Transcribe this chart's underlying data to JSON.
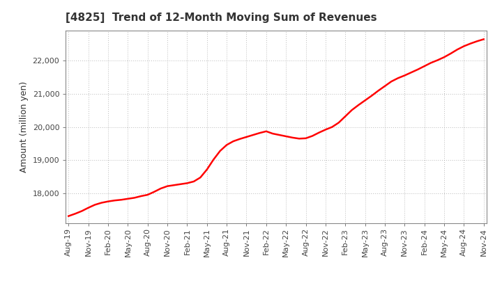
{
  "title": "[4825]  Trend of 12-Month Moving Sum of Revenues",
  "ylabel": "Amount (million yen)",
  "line_color": "#FF0000",
  "line_width": 1.8,
  "background_color": "#FFFFFF",
  "plot_bg_color": "#FFFFFF",
  "grid_color": "#999999",
  "ylim": [
    17100,
    22900
  ],
  "yticks": [
    18000,
    19000,
    20000,
    21000,
    22000
  ],
  "values": [
    17320,
    17390,
    17470,
    17570,
    17660,
    17720,
    17760,
    17790,
    17810,
    17840,
    17870,
    17920,
    17960,
    18050,
    18150,
    18220,
    18250,
    18280,
    18310,
    18360,
    18480,
    18720,
    19020,
    19280,
    19460,
    19570,
    19640,
    19700,
    19760,
    19820,
    19870,
    19800,
    19760,
    19720,
    19680,
    19650,
    19660,
    19730,
    19830,
    19920,
    20000,
    20130,
    20320,
    20510,
    20660,
    20800,
    20940,
    21090,
    21230,
    21370,
    21470,
    21550,
    21640,
    21730,
    21830,
    21930,
    22010,
    22100,
    22210,
    22330,
    22430,
    22510,
    22580,
    22640
  ],
  "xtick_labels": [
    "Aug-19",
    "Nov-19",
    "Feb-20",
    "May-20",
    "Aug-20",
    "Nov-20",
    "Feb-21",
    "May-21",
    "Aug-21",
    "Nov-21",
    "Feb-22",
    "May-22",
    "Aug-22",
    "Nov-22",
    "Feb-23",
    "May-23",
    "Aug-23",
    "Nov-23",
    "Feb-24",
    "May-24",
    "Aug-24",
    "Nov-24"
  ],
  "xtick_positions": [
    0,
    3,
    6,
    9,
    12,
    15,
    18,
    21,
    24,
    27,
    30,
    33,
    36,
    39,
    42,
    45,
    48,
    51,
    54,
    57,
    60,
    63
  ]
}
